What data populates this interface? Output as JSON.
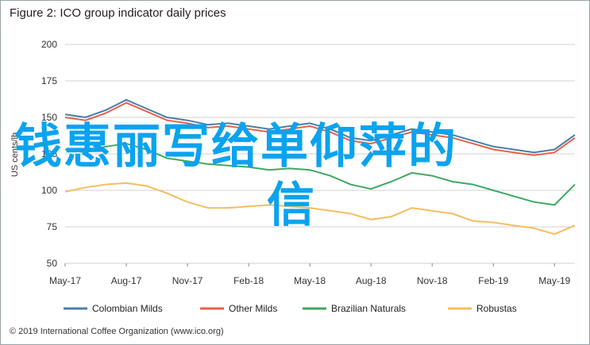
{
  "title": "Figure 2: ICO group indicator daily prices",
  "footer": "© 2019 International Coffee Organization (www.ico.org)",
  "overlay_text": [
    "钱惠丽写给单仰萍的",
    "信"
  ],
  "chart_data": {
    "type": "line",
    "ylabel": "US cents/lb",
    "ylim": [
      50,
      200
    ],
    "yticks": [
      200,
      175,
      150,
      125,
      100,
      75,
      50
    ],
    "xticks": [
      "May-17",
      "Aug-17",
      "Nov-17",
      "Feb-18",
      "May-18",
      "Aug-18",
      "Nov-18",
      "Feb-19",
      "May-19"
    ],
    "x": [
      "May-17",
      "Jun-17",
      "Jul-17",
      "Aug-17",
      "Sep-17",
      "Oct-17",
      "Nov-17",
      "Dec-17",
      "Jan-18",
      "Feb-18",
      "Mar-18",
      "Apr-18",
      "May-18",
      "Jun-18",
      "Jul-18",
      "Aug-18",
      "Sep-18",
      "Oct-18",
      "Nov-18",
      "Dec-18",
      "Jan-19",
      "Feb-19",
      "Mar-19",
      "Apr-19",
      "May-19",
      "Jun-19"
    ],
    "grid": true,
    "legend_position": "bottom",
    "series": [
      {
        "name": "Colombian Milds",
        "color": "#4a7fa7",
        "values": [
          152,
          150,
          155,
          162,
          156,
          150,
          148,
          145,
          146,
          144,
          142,
          144,
          146,
          142,
          136,
          134,
          138,
          142,
          140,
          138,
          134,
          130,
          128,
          126,
          128,
          138
        ]
      },
      {
        "name": "Other Milds",
        "color": "#e8604a",
        "values": [
          150,
          148,
          153,
          160,
          154,
          148,
          146,
          143,
          144,
          142,
          140,
          142,
          144,
          140,
          134,
          132,
          136,
          140,
          138,
          136,
          132,
          128,
          126,
          124,
          126,
          136
        ]
      },
      {
        "name": "Brazilian Naturals",
        "color": "#3fa862",
        "values": [
          128,
          126,
          130,
          132,
          128,
          122,
          120,
          118,
          117,
          116,
          114,
          115,
          114,
          110,
          104,
          101,
          106,
          112,
          110,
          106,
          104,
          100,
          96,
          92,
          90,
          104
        ]
      },
      {
        "name": "Robustas",
        "color": "#f5bd60",
        "values": [
          99,
          102,
          104,
          105,
          103,
          98,
          92,
          88,
          88,
          89,
          90,
          89,
          88,
          86,
          84,
          80,
          82,
          88,
          86,
          84,
          79,
          78,
          76,
          74,
          70,
          76
        ]
      }
    ]
  }
}
